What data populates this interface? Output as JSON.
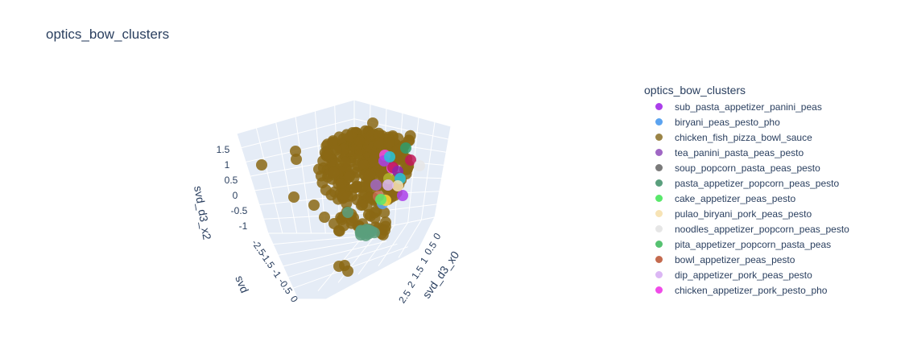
{
  "chart_data": {
    "type": "scatter",
    "title": "optics_bow_clusters",
    "axes": {
      "x": {
        "label": "svd_d3_x0",
        "ticks": [
          "0",
          "0.5",
          "1",
          "1.5",
          "2",
          "2.5"
        ]
      },
      "y": {
        "label": "svd",
        "ticks": [
          "-2.5",
          "-1.5",
          "-1",
          "-0.5",
          "0"
        ]
      },
      "z": {
        "label": "svd_d3_x2",
        "ticks": [
          "-1",
          "-0.5",
          "0",
          "0.5",
          "1",
          "1.5"
        ]
      }
    },
    "legend_title": "optics_bow_clusters",
    "legend_position": "right",
    "series": [
      {
        "name": "sub_pasta_appetizer_panini_peas",
        "color": "#ab3fea"
      },
      {
        "name": "biryani_peas_pesto_pho",
        "color": "#5ba3f0"
      },
      {
        "name": "chicken_fish_pizza_bowl_sauce",
        "color": "#9b8446"
      },
      {
        "name": "tea_panini_pasta_peas_pesto",
        "color": "#a067c4"
      },
      {
        "name": "soup_popcorn_pasta_peas_pesto",
        "color": "#7a7a7a"
      },
      {
        "name": "pasta_appetizer_popcorn_peas_pesto",
        "color": "#5a9f7d"
      },
      {
        "name": "cake_appetizer_peas_pesto",
        "color": "#59e86b"
      },
      {
        "name": "pulao_biryani_pork_peas_pesto",
        "color": "#f7e3b5"
      },
      {
        "name": "noodles_appetizer_popcorn_peas_pesto",
        "color": "#e6e6e6"
      },
      {
        "name": "pita_appetizer_popcorn_pasta_peas",
        "color": "#56c271"
      },
      {
        "name": "bowl_appetizer_peas_pesto",
        "color": "#c46a4e"
      },
      {
        "name": "dip_appetizer_pork_peas_pesto",
        "color": "#dbb7f4"
      },
      {
        "name": "chicken_appetizer_pork_pesto_pho",
        "color": "#f04be8"
      }
    ],
    "grid": true
  }
}
